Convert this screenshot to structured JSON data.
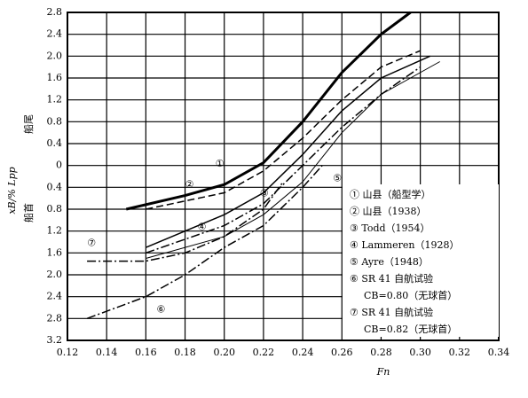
{
  "chart_data": {
    "type": "line",
    "x_label": "Fn",
    "y_label": "xB/% Lpp",
    "y_upper_label": "船尾",
    "y_lower_label": "船首",
    "xlim": [
      0.12,
      0.34
    ],
    "xticks": [
      0.12,
      0.14,
      0.16,
      0.18,
      {
        "value": 0.2,
        "label": "0.20"
      },
      0.22,
      0.24,
      0.26,
      0.28,
      {
        "value": 0.3,
        "label": "0.30"
      },
      0.32,
      0.34
    ],
    "ylim": [
      -3.2,
      2.8
    ],
    "yticks": [
      2.8,
      2.4,
      {
        "value": 2.0,
        "label": "2.0"
      },
      1.6,
      1.2,
      0.8,
      0.4,
      0,
      {
        "value": -0.4,
        "label": "0.4"
      },
      {
        "value": -0.8,
        "label": "0.8"
      },
      {
        "value": -1.2,
        "label": "1.2"
      },
      {
        "value": -1.6,
        "label": "1.6"
      },
      {
        "value": -2.0,
        "label": "2.0"
      },
      {
        "value": -2.4,
        "label": "2.4"
      },
      {
        "value": -2.8,
        "label": "2.8"
      },
      {
        "value": -3.2,
        "label": "3.2"
      }
    ],
    "grid": true,
    "legend": "lower right",
    "series": [
      {
        "name": "① 山县（船型学）",
        "tag": "①",
        "color": "#000",
        "dash": "solid",
        "width": 3,
        "x": [
          0.15,
          0.18,
          0.2,
          0.22,
          0.24,
          0.26,
          0.28,
          0.295
        ],
        "values": [
          -0.8,
          -0.55,
          -0.35,
          0.05,
          0.8,
          1.7,
          2.4,
          2.8
        ]
      },
      {
        "name": "② 山县（1938）",
        "tag": "②",
        "color": "#000",
        "dash": "dashed",
        "width": 1.5,
        "x": [
          0.16,
          0.2,
          0.22,
          0.24,
          0.26,
          0.28,
          0.3
        ],
        "values": [
          -0.8,
          -0.5,
          -0.1,
          0.5,
          1.2,
          1.8,
          2.1
        ]
      },
      {
        "name": "③ Todd（1954）",
        "tag": "③",
        "color": "#000",
        "dash": "dashdot",
        "width": 1.5,
        "x": [
          0.16,
          0.2,
          0.22,
          0.24,
          0.26,
          0.28,
          0.3
        ],
        "values": [
          -1.6,
          -1.1,
          -0.7,
          0,
          0.7,
          1.3,
          1.8
        ]
      },
      {
        "name": "④ Lammeren（1928）",
        "tag": "④",
        "color": "#000",
        "dash": "solid",
        "width": 1.5,
        "x": [
          0.16,
          0.18,
          0.2,
          0.22,
          0.24,
          0.26,
          0.28,
          0.305
        ],
        "values": [
          -1.5,
          -1.2,
          -0.9,
          -0.5,
          0.2,
          1.0,
          1.6,
          2.0
        ]
      },
      {
        "name": "⑤ Ayre（1948）",
        "tag": "⑤",
        "color": "#000",
        "dash": "solid",
        "width": 1,
        "x": [
          0.16,
          0.2,
          0.22,
          0.24,
          0.26,
          0.28,
          0.31
        ],
        "values": [
          -1.7,
          -1.3,
          -0.9,
          -0.3,
          0.6,
          1.3,
          1.9
        ]
      },
      {
        "name": "⑥ SR 41 自航试验",
        "note": "CB=0.80（无球首）",
        "tag": "⑥",
        "color": "#000",
        "dash": "dashdot",
        "width": 1.5,
        "x": [
          0.13,
          0.16,
          0.18,
          0.2,
          0.22,
          0.24,
          0.25
        ],
        "values": [
          -2.8,
          -2.4,
          -2.0,
          -1.5,
          -1.1,
          -0.4,
          0
        ]
      },
      {
        "name": "⑦ SR 41 自航试验",
        "note": "CB=0.82（无球首）",
        "tag": "⑦",
        "color": "#000",
        "dash": "dashdot",
        "width": 1.5,
        "x": [
          0.13,
          0.16,
          0.18,
          0.2,
          0.22,
          0.23
        ],
        "values": [
          -1.75,
          -1.75,
          -1.6,
          -1.3,
          -0.8,
          -0.3
        ]
      }
    ]
  }
}
